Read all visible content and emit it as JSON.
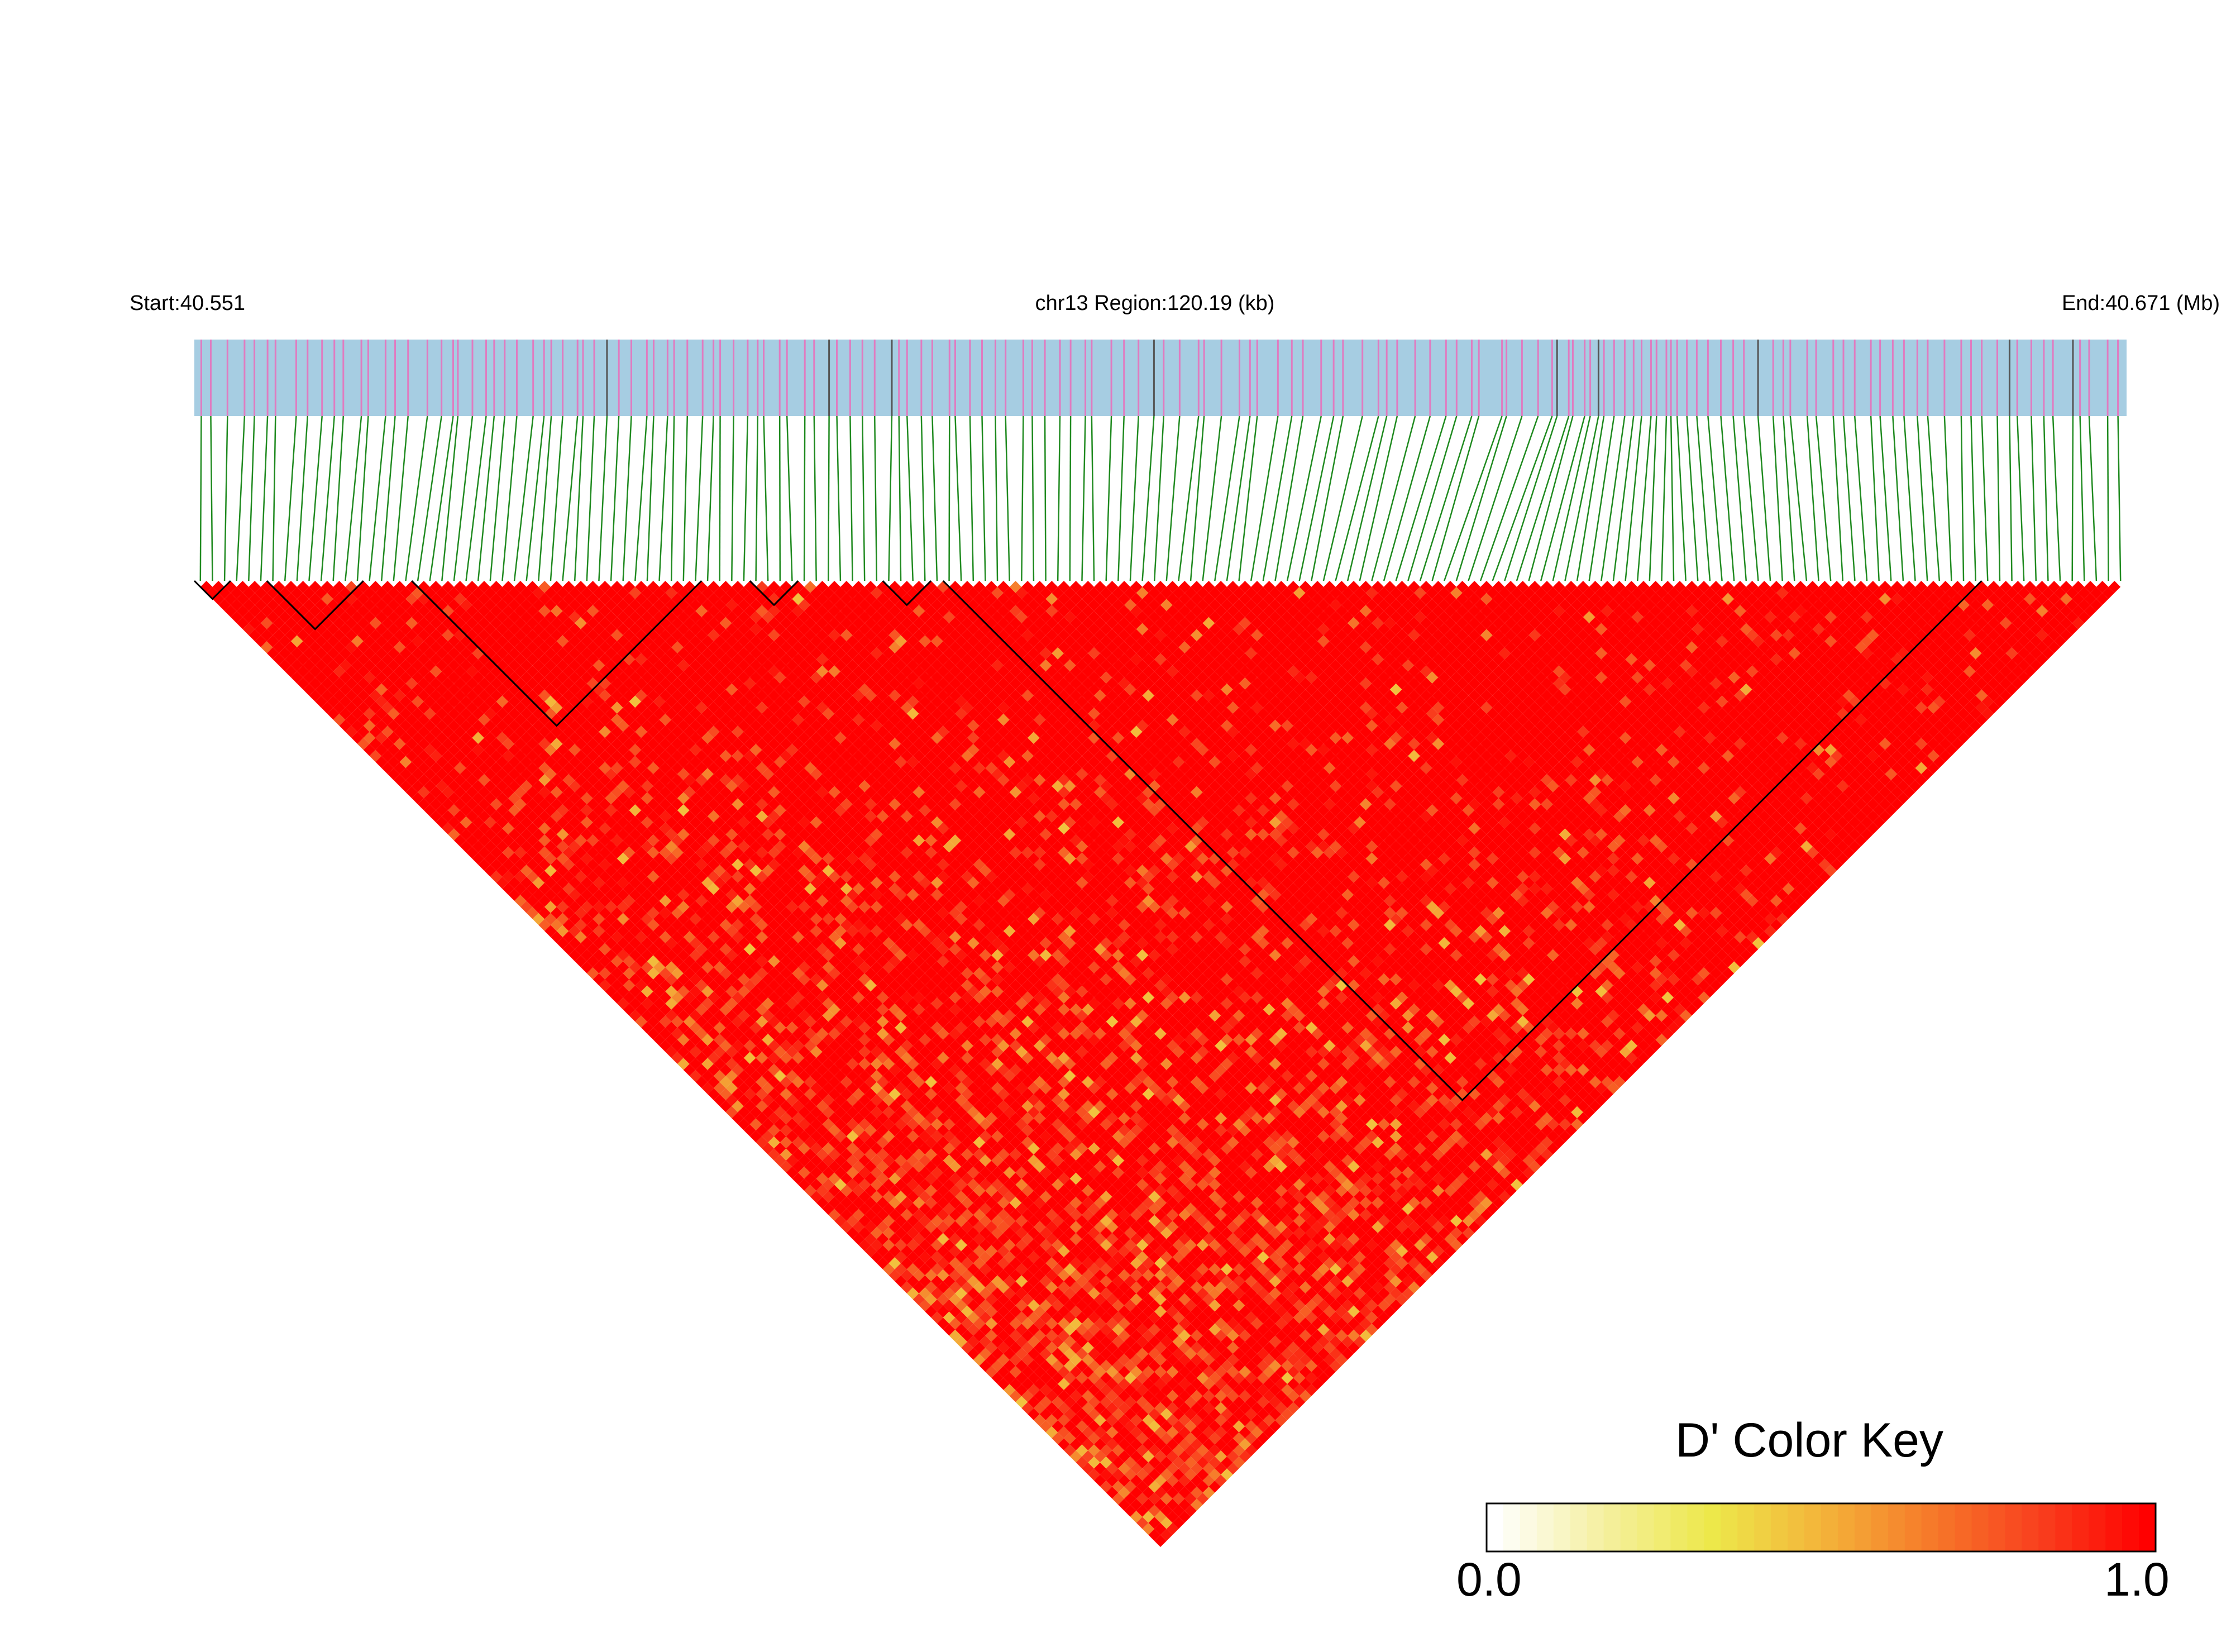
{
  "header": {
    "start_label": "Start:40.551",
    "region_label": "chr13 Region:120.19 (kb)",
    "end_label": "End:40.671 (Mb)"
  },
  "color_key": {
    "title": "D' Color Key",
    "min_label": "0.0",
    "max_label": "1.0",
    "colors": [
      "#ffffff",
      "#f5f0a0",
      "#ede84a",
      "#f3b43a",
      "#f67a2a",
      "#f9401e",
      "#ff0000"
    ]
  },
  "chart_data": {
    "type": "heatmap",
    "description_kind": "ld-triangle",
    "chromosome": "chr13",
    "start_mb": 40.551,
    "end_mb": 40.671,
    "region_kb": 120.19,
    "snp_count": 160,
    "value_range": [
      0.0,
      1.0
    ],
    "metric": "D'",
    "dominant_value": 1.0,
    "ld_blocks_snp_index_ranges": [
      [
        0,
        2
      ],
      [
        6,
        13
      ],
      [
        18,
        41
      ],
      [
        46,
        49
      ],
      [
        57,
        60
      ],
      [
        62,
        147
      ]
    ]
  }
}
